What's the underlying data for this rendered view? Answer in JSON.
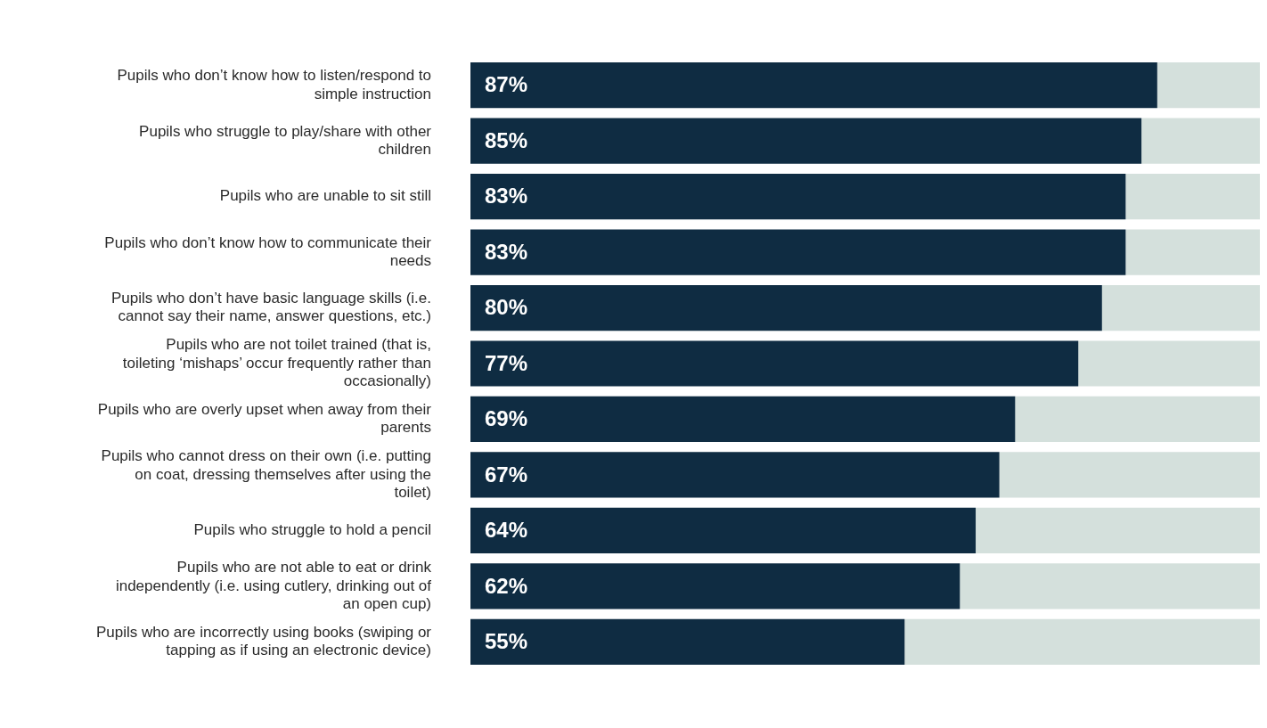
{
  "chart_data": {
    "type": "bar",
    "orientation": "horizontal",
    "stacked": true,
    "grid": false,
    "legend": false,
    "tick_labels": "y",
    "xlim": [
      0,
      100
    ],
    "categories": [
      "Pupils who don’t know how to listen/respond to simple instruction",
      "Pupils who struggle to play/share with other children",
      "Pupils who are unable to sit still",
      "Pupils who don’t know how to communicate their needs",
      "Pupils who don’t have basic language skills (i.e. cannot say their name, answer questions, etc.)",
      "Pupils who are not toilet trained (that is, toileting ‘mishaps’ occur frequently rather than occasionally)",
      "Pupils who are overly upset when away from their parents",
      "Pupils who cannot dress on their own (i.e. putting on coat, dressing themselves after using the toilet)",
      "Pupils who struggle to hold a pencil",
      "Pupils who are not able to eat or drink independently (i.e. using cutlery, drinking out of an open cup)",
      "Pupils who are incorrectly using books (swiping or tapping as if using an electronic device)"
    ],
    "series": [
      {
        "color": "#0f2c42",
        "values": [
          87,
          85,
          83,
          83,
          80,
          77,
          69,
          67,
          64,
          62,
          55
        ],
        "value_labels": [
          "87%",
          "85%",
          "83%",
          "83%",
          "80%",
          "77%",
          "69%",
          "67%",
          "64%",
          "62%",
          "55%"
        ]
      },
      {
        "color": "#d4e0dc",
        "values": [
          13,
          15,
          17,
          17,
          20,
          23,
          31,
          33,
          36,
          38,
          45
        ]
      }
    ]
  }
}
